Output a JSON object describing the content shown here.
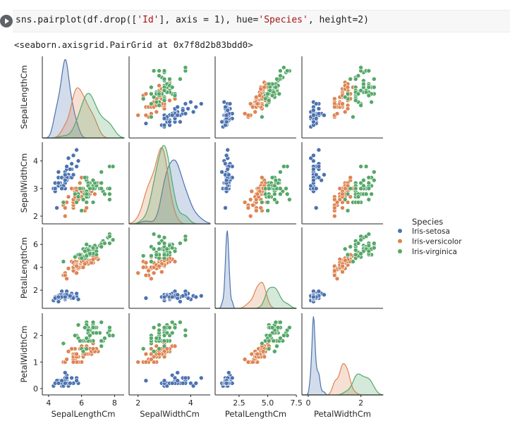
{
  "cell": {
    "code_segments": [
      {
        "text": "sns.pairplot(df.drop([",
        "kind": "plain"
      },
      {
        "text": "'Id'",
        "kind": "string"
      },
      {
        "text": "], axis = 1), hue=",
        "kind": "plain"
      },
      {
        "text": "'Species'",
        "kind": "string"
      },
      {
        "text": ", height=2)",
        "kind": "plain"
      }
    ]
  },
  "output": {
    "repr": "<seaborn.axisgrid.PairGrid at 0x7f8d2b83bdd0>"
  },
  "chart_data": {
    "type": "scatter",
    "grid": false,
    "legend": {
      "title": "Species",
      "placement": "right",
      "entries": [
        {
          "name": "Iris-setosa",
          "color": "#4c72b0"
        },
        {
          "name": "Iris-versicolor",
          "color": "#dd8452"
        },
        {
          "name": "Iris-virginica",
          "color": "#55a868"
        }
      ]
    },
    "variables": [
      "SepalLengthCm",
      "SepalWidthCm",
      "PetalLengthCm",
      "PetalWidthCm"
    ],
    "axis_labels": [
      "SepalLengthCm",
      "SepalWidthCm",
      "PetalLengthCm",
      "PetalWidthCm"
    ],
    "x_ticks": [
      [
        4,
        6,
        8
      ],
      [
        2,
        4
      ],
      [
        2.5,
        5.0,
        7.5
      ],
      [
        0,
        2
      ]
    ],
    "x_tick_labels": [
      [
        "4",
        "6",
        "8"
      ],
      [
        "2",
        "4"
      ],
      [
        "2.5",
        "5.0",
        "7.5"
      ],
      [
        "0",
        "2"
      ]
    ],
    "y_ticks": [
      [],
      [
        2,
        3,
        4
      ],
      [
        2,
        4,
        6
      ],
      [
        0,
        1,
        2
      ]
    ],
    "y_tick_labels": [
      [],
      [
        "2",
        "3",
        "4"
      ],
      [
        "2",
        "4",
        "6"
      ],
      [
        "0",
        "1",
        "2"
      ]
    ],
    "diagonal": "kde",
    "species_data": {
      "Iris-setosa": [
        [
          5.1,
          3.5,
          1.4,
          0.2
        ],
        [
          4.9,
          3.0,
          1.4,
          0.2
        ],
        [
          4.7,
          3.2,
          1.3,
          0.2
        ],
        [
          4.6,
          3.1,
          1.5,
          0.2
        ],
        [
          5.0,
          3.6,
          1.4,
          0.2
        ],
        [
          5.4,
          3.9,
          1.7,
          0.4
        ],
        [
          4.6,
          3.4,
          1.4,
          0.3
        ],
        [
          5.0,
          3.4,
          1.5,
          0.2
        ],
        [
          4.4,
          2.9,
          1.4,
          0.2
        ],
        [
          4.9,
          3.1,
          1.5,
          0.1
        ],
        [
          5.4,
          3.7,
          1.5,
          0.2
        ],
        [
          4.8,
          3.4,
          1.6,
          0.2
        ],
        [
          4.8,
          3.0,
          1.4,
          0.1
        ],
        [
          4.3,
          3.0,
          1.1,
          0.1
        ],
        [
          5.8,
          4.0,
          1.2,
          0.2
        ],
        [
          5.7,
          4.4,
          1.5,
          0.4
        ],
        [
          5.4,
          3.9,
          1.3,
          0.4
        ],
        [
          5.1,
          3.5,
          1.4,
          0.3
        ],
        [
          5.7,
          3.8,
          1.7,
          0.3
        ],
        [
          5.1,
          3.8,
          1.5,
          0.3
        ],
        [
          5.4,
          3.4,
          1.7,
          0.2
        ],
        [
          5.1,
          3.7,
          1.5,
          0.4
        ],
        [
          4.6,
          3.6,
          1.0,
          0.2
        ],
        [
          5.1,
          3.3,
          1.7,
          0.5
        ],
        [
          4.8,
          3.4,
          1.9,
          0.2
        ],
        [
          5.0,
          3.0,
          1.6,
          0.2
        ],
        [
          5.0,
          3.4,
          1.6,
          0.4
        ],
        [
          5.2,
          3.5,
          1.5,
          0.2
        ],
        [
          5.2,
          3.4,
          1.4,
          0.2
        ],
        [
          4.7,
          3.2,
          1.6,
          0.2
        ],
        [
          4.8,
          3.1,
          1.6,
          0.2
        ],
        [
          5.4,
          3.4,
          1.5,
          0.4
        ],
        [
          5.2,
          4.1,
          1.5,
          0.1
        ],
        [
          5.5,
          4.2,
          1.4,
          0.2
        ],
        [
          4.9,
          3.1,
          1.5,
          0.1
        ],
        [
          5.0,
          3.2,
          1.2,
          0.2
        ],
        [
          5.5,
          3.5,
          1.3,
          0.2
        ],
        [
          4.9,
          3.1,
          1.5,
          0.1
        ],
        [
          4.4,
          3.0,
          1.3,
          0.2
        ],
        [
          5.1,
          3.4,
          1.5,
          0.2
        ],
        [
          5.0,
          3.5,
          1.3,
          0.3
        ],
        [
          4.5,
          2.3,
          1.3,
          0.3
        ],
        [
          4.4,
          3.2,
          1.3,
          0.2
        ],
        [
          5.0,
          3.5,
          1.6,
          0.6
        ],
        [
          5.1,
          3.8,
          1.9,
          0.4
        ],
        [
          4.8,
          3.0,
          1.4,
          0.3
        ],
        [
          5.1,
          3.8,
          1.6,
          0.2
        ],
        [
          4.6,
          3.2,
          1.4,
          0.2
        ],
        [
          5.3,
          3.7,
          1.5,
          0.2
        ],
        [
          5.0,
          3.3,
          1.4,
          0.2
        ]
      ],
      "Iris-versicolor": [
        [
          7.0,
          3.2,
          4.7,
          1.4
        ],
        [
          6.4,
          3.2,
          4.5,
          1.5
        ],
        [
          6.9,
          3.1,
          4.9,
          1.5
        ],
        [
          5.5,
          2.3,
          4.0,
          1.3
        ],
        [
          6.5,
          2.8,
          4.6,
          1.5
        ],
        [
          5.7,
          2.8,
          4.5,
          1.3
        ],
        [
          6.3,
          3.3,
          4.7,
          1.6
        ],
        [
          4.9,
          2.4,
          3.3,
          1.0
        ],
        [
          6.6,
          2.9,
          4.6,
          1.3
        ],
        [
          5.2,
          2.7,
          3.9,
          1.4
        ],
        [
          5.0,
          2.0,
          3.5,
          1.0
        ],
        [
          5.9,
          3.0,
          4.2,
          1.5
        ],
        [
          6.0,
          2.2,
          4.0,
          1.0
        ],
        [
          6.1,
          2.9,
          4.7,
          1.4
        ],
        [
          5.6,
          2.9,
          3.6,
          1.3
        ],
        [
          6.7,
          3.1,
          4.4,
          1.4
        ],
        [
          5.6,
          3.0,
          4.5,
          1.5
        ],
        [
          5.8,
          2.7,
          4.1,
          1.0
        ],
        [
          6.2,
          2.2,
          4.5,
          1.5
        ],
        [
          5.6,
          2.5,
          3.9,
          1.1
        ],
        [
          5.9,
          3.2,
          4.8,
          1.8
        ],
        [
          6.1,
          2.8,
          4.0,
          1.3
        ],
        [
          6.3,
          2.5,
          4.9,
          1.5
        ],
        [
          6.1,
          2.8,
          4.7,
          1.2
        ],
        [
          6.4,
          2.9,
          4.3,
          1.3
        ],
        [
          6.6,
          3.0,
          4.4,
          1.4
        ],
        [
          6.8,
          2.8,
          4.8,
          1.4
        ],
        [
          6.7,
          3.0,
          5.0,
          1.7
        ],
        [
          6.0,
          2.9,
          4.5,
          1.5
        ],
        [
          5.7,
          2.6,
          3.5,
          1.0
        ],
        [
          5.5,
          2.4,
          3.8,
          1.1
        ],
        [
          5.5,
          2.4,
          3.7,
          1.0
        ],
        [
          5.8,
          2.7,
          3.9,
          1.2
        ],
        [
          6.0,
          2.7,
          5.1,
          1.6
        ],
        [
          5.4,
          3.0,
          4.5,
          1.5
        ],
        [
          6.0,
          3.4,
          4.5,
          1.6
        ],
        [
          6.7,
          3.1,
          4.7,
          1.5
        ],
        [
          6.3,
          2.3,
          4.4,
          1.3
        ],
        [
          5.6,
          3.0,
          4.1,
          1.3
        ],
        [
          5.5,
          2.5,
          4.0,
          1.3
        ],
        [
          5.5,
          2.6,
          4.4,
          1.2
        ],
        [
          6.1,
          3.0,
          4.6,
          1.4
        ],
        [
          5.8,
          2.6,
          4.0,
          1.2
        ],
        [
          5.0,
          2.3,
          3.3,
          1.0
        ],
        [
          5.6,
          2.7,
          4.2,
          1.3
        ],
        [
          5.7,
          3.0,
          4.2,
          1.2
        ],
        [
          5.7,
          2.9,
          4.2,
          1.3
        ],
        [
          6.2,
          2.9,
          4.3,
          1.3
        ],
        [
          5.1,
          2.5,
          3.0,
          1.1
        ],
        [
          5.7,
          2.8,
          4.1,
          1.3
        ]
      ],
      "Iris-virginica": [
        [
          6.3,
          3.3,
          6.0,
          2.5
        ],
        [
          5.8,
          2.7,
          5.1,
          1.9
        ],
        [
          7.1,
          3.0,
          5.9,
          2.1
        ],
        [
          6.3,
          2.9,
          5.6,
          1.8
        ],
        [
          6.5,
          3.0,
          5.8,
          2.2
        ],
        [
          7.6,
          3.0,
          6.6,
          2.1
        ],
        [
          4.9,
          2.5,
          4.5,
          1.7
        ],
        [
          7.3,
          2.9,
          6.3,
          1.8
        ],
        [
          6.7,
          2.5,
          5.8,
          1.8
        ],
        [
          7.2,
          3.6,
          6.1,
          2.5
        ],
        [
          6.5,
          3.2,
          5.1,
          2.0
        ],
        [
          6.4,
          2.7,
          5.3,
          1.9
        ],
        [
          6.8,
          3.0,
          5.5,
          2.1
        ],
        [
          5.7,
          2.5,
          5.0,
          2.0
        ],
        [
          5.8,
          2.8,
          5.1,
          2.4
        ],
        [
          6.4,
          3.2,
          5.3,
          2.3
        ],
        [
          6.5,
          3.0,
          5.5,
          1.8
        ],
        [
          7.7,
          3.8,
          6.7,
          2.2
        ],
        [
          7.7,
          2.6,
          6.9,
          2.3
        ],
        [
          6.0,
          2.2,
          5.0,
          1.5
        ],
        [
          6.9,
          3.2,
          5.7,
          2.3
        ],
        [
          5.6,
          2.8,
          4.9,
          2.0
        ],
        [
          7.7,
          2.8,
          6.7,
          2.0
        ],
        [
          6.3,
          2.7,
          4.9,
          1.8
        ],
        [
          6.7,
          3.3,
          5.7,
          2.1
        ],
        [
          7.2,
          3.2,
          6.0,
          1.8
        ],
        [
          6.2,
          2.8,
          4.8,
          1.8
        ],
        [
          6.1,
          3.0,
          4.9,
          1.8
        ],
        [
          6.4,
          2.8,
          5.6,
          2.1
        ],
        [
          7.2,
          3.0,
          5.8,
          1.6
        ],
        [
          7.4,
          2.8,
          6.1,
          1.9
        ],
        [
          7.9,
          3.8,
          6.4,
          2.0
        ],
        [
          6.4,
          2.8,
          5.6,
          2.2
        ],
        [
          6.3,
          2.8,
          5.1,
          1.5
        ],
        [
          6.1,
          2.6,
          5.6,
          1.4
        ],
        [
          7.7,
          3.0,
          6.1,
          2.3
        ],
        [
          6.3,
          3.4,
          5.6,
          2.4
        ],
        [
          6.4,
          3.1,
          5.5,
          1.8
        ],
        [
          6.0,
          3.0,
          4.8,
          1.8
        ],
        [
          6.9,
          3.1,
          5.4,
          2.1
        ],
        [
          6.7,
          3.1,
          5.6,
          2.4
        ],
        [
          6.9,
          3.1,
          5.1,
          2.3
        ],
        [
          5.8,
          2.7,
          5.1,
          1.9
        ],
        [
          6.8,
          3.2,
          5.9,
          2.3
        ],
        [
          6.7,
          3.3,
          5.7,
          2.5
        ],
        [
          6.7,
          3.0,
          5.2,
          2.3
        ],
        [
          6.3,
          2.5,
          5.0,
          1.9
        ],
        [
          6.5,
          3.0,
          5.2,
          2.0
        ],
        [
          6.2,
          3.4,
          5.4,
          2.3
        ],
        [
          5.9,
          3.0,
          5.1,
          1.8
        ]
      ]
    }
  }
}
